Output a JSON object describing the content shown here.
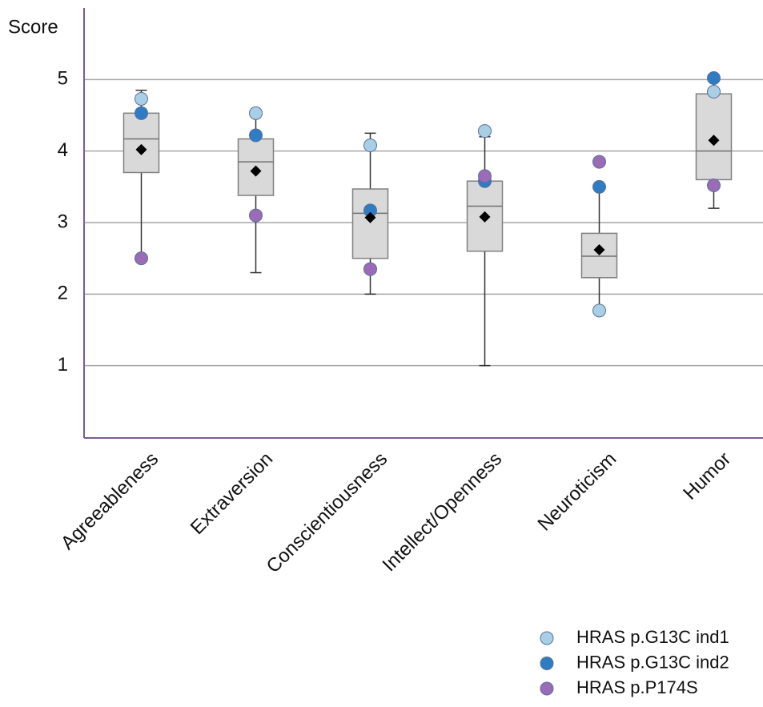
{
  "chart_data": {
    "type": "box",
    "y_label": "Score",
    "categories": [
      "Agreeableness",
      "Extraversion",
      "Conscientiousness",
      "Intellect/Openness",
      "Neuroticism",
      "Humor"
    ],
    "min": [
      2.5,
      2.3,
      2.0,
      1.0,
      1.75,
      3.2
    ],
    "q1": [
      3.7,
      3.38,
      2.5,
      2.6,
      2.23,
      3.6
    ],
    "median": [
      4.17,
      3.85,
      3.13,
      3.23,
      2.53,
      4.0
    ],
    "q3": [
      4.53,
      4.17,
      3.47,
      3.58,
      2.85,
      4.8
    ],
    "max": [
      4.85,
      4.5,
      4.25,
      4.2,
      3.5,
      5.0
    ],
    "mean": [
      4.02,
      3.72,
      3.07,
      3.08,
      2.62,
      4.15
    ],
    "box_color": "#d9d9d9",
    "series": [
      {
        "name": "HRAS p.G13C ind1",
        "color": "#a9cfe6",
        "values": [
          4.73,
          4.53,
          4.08,
          4.28,
          1.77,
          4.83
        ]
      },
      {
        "name": "HRAS p.G13C ind2",
        "color": "#2e7cc4",
        "values": [
          4.53,
          4.22,
          3.17,
          3.58,
          3.5,
          5.02
        ]
      },
      {
        "name": "HRAS p.P174S",
        "color": "#9b6bb8",
        "values": [
          2.5,
          3.1,
          2.35,
          3.65,
          3.85,
          3.52
        ]
      }
    ],
    "ylim": [
      0,
      6
    ],
    "yticks": [
      1,
      2,
      3,
      4,
      5
    ],
    "grid": true,
    "legend": "bottom-right"
  }
}
